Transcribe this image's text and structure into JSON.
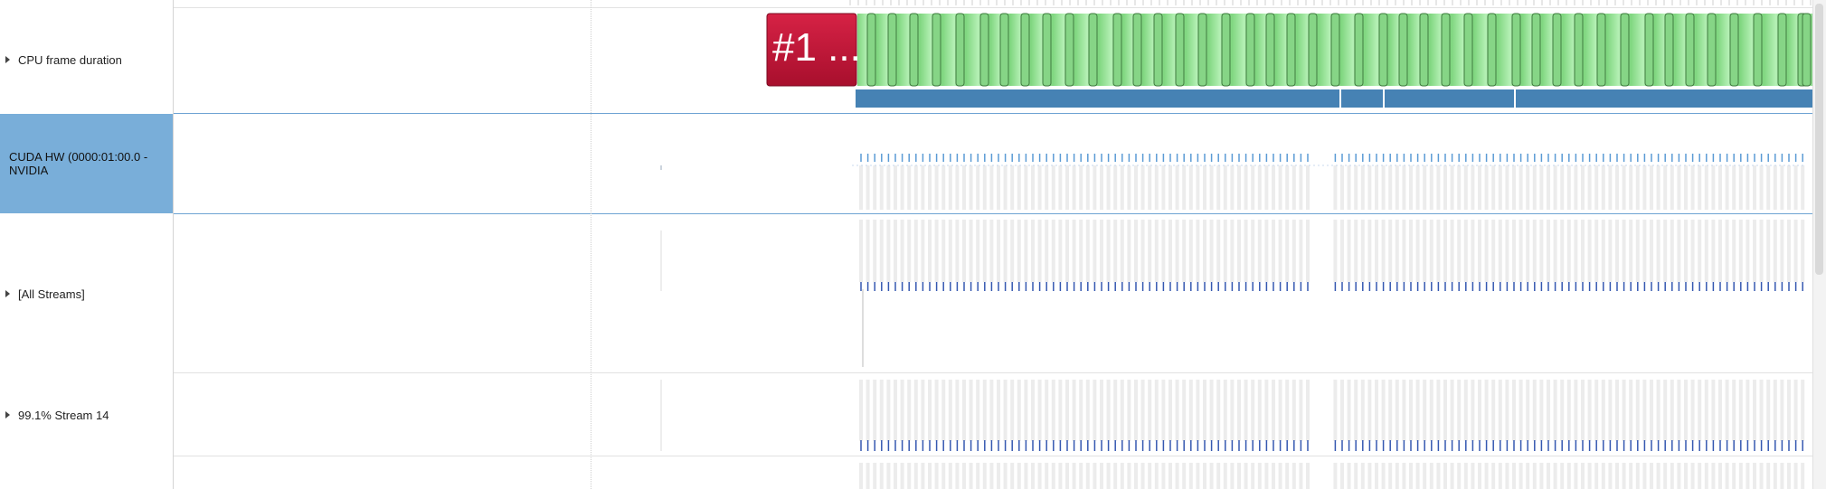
{
  "rows": [
    {
      "label": "CPU frame duration",
      "expandable": true,
      "selected": false
    },
    {
      "label": "CUDA HW (0000:01:00.0 - NVIDIA",
      "expandable": false,
      "selected": true
    },
    {
      "label": "[All Streams]",
      "expandable": true,
      "selected": false
    },
    {
      "label": "99.1% Stream 14",
      "expandable": true,
      "selected": false
    }
  ],
  "frame_badge": "#1 ...",
  "colors": {
    "selected_row": "#79aed9",
    "frame_slow": "#c4173a",
    "frame_ok": "#8fe08f",
    "frame_bar": "#4682b4",
    "kernel_tick": "#5b9bd5",
    "stream_tick": "#3558b0"
  }
}
